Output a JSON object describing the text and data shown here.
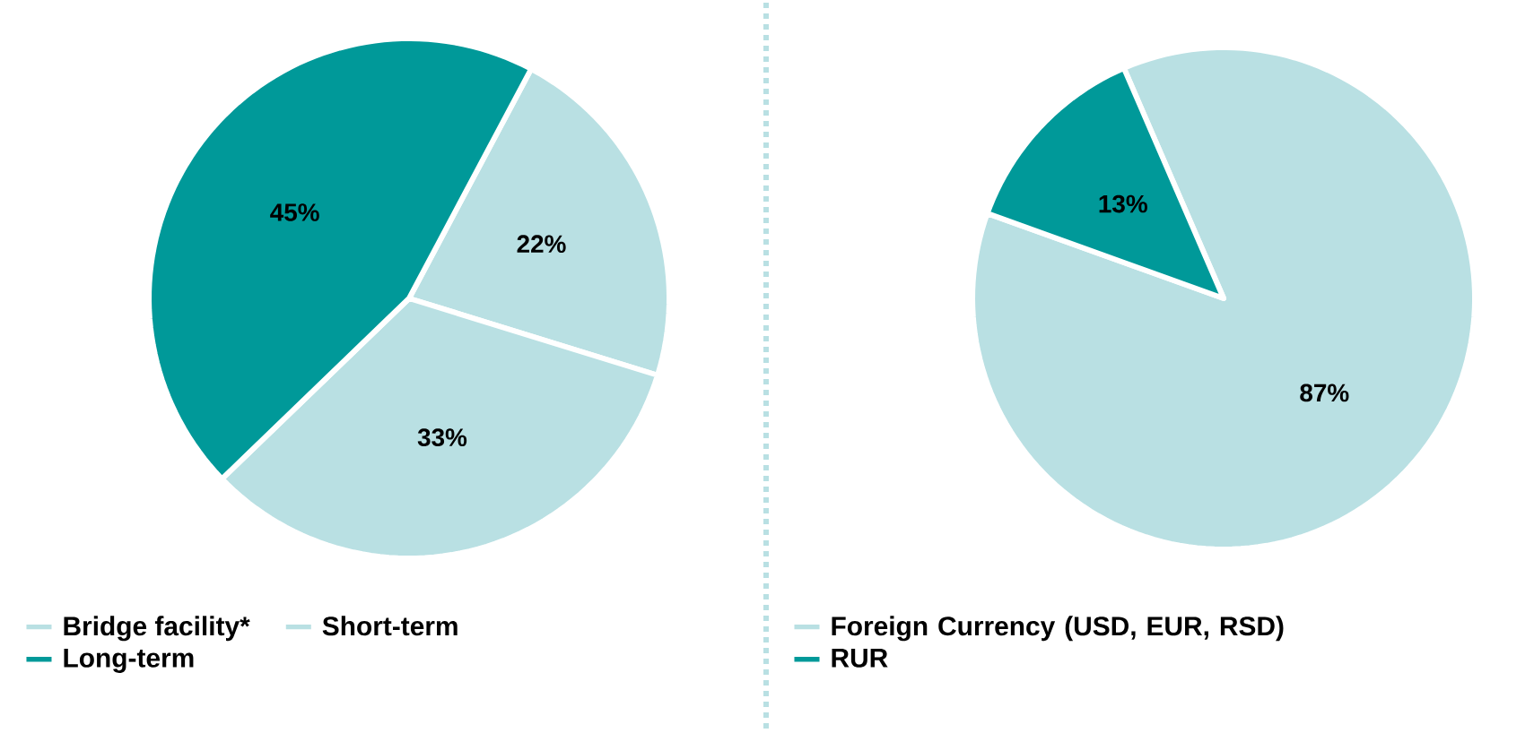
{
  "chart_data": [
    {
      "type": "pie",
      "categories": [
        "Bridge facility*",
        "Short-term",
        "Long-term"
      ],
      "values": [
        22,
        33,
        45
      ],
      "value_labels": [
        "22%",
        "33%",
        "45%"
      ],
      "colors": [
        "#b9e0e3",
        "#b9e0e3",
        "#009999"
      ],
      "legend": "bottom"
    },
    {
      "type": "pie",
      "categories": [
        "Foreign Currency (USD, EUR, RSD)",
        "RUR"
      ],
      "values": [
        87,
        13
      ],
      "value_labels": [
        "87%",
        "13%"
      ],
      "colors": [
        "#b9e0e3",
        "#009999"
      ],
      "legend": "bottom"
    }
  ]
}
